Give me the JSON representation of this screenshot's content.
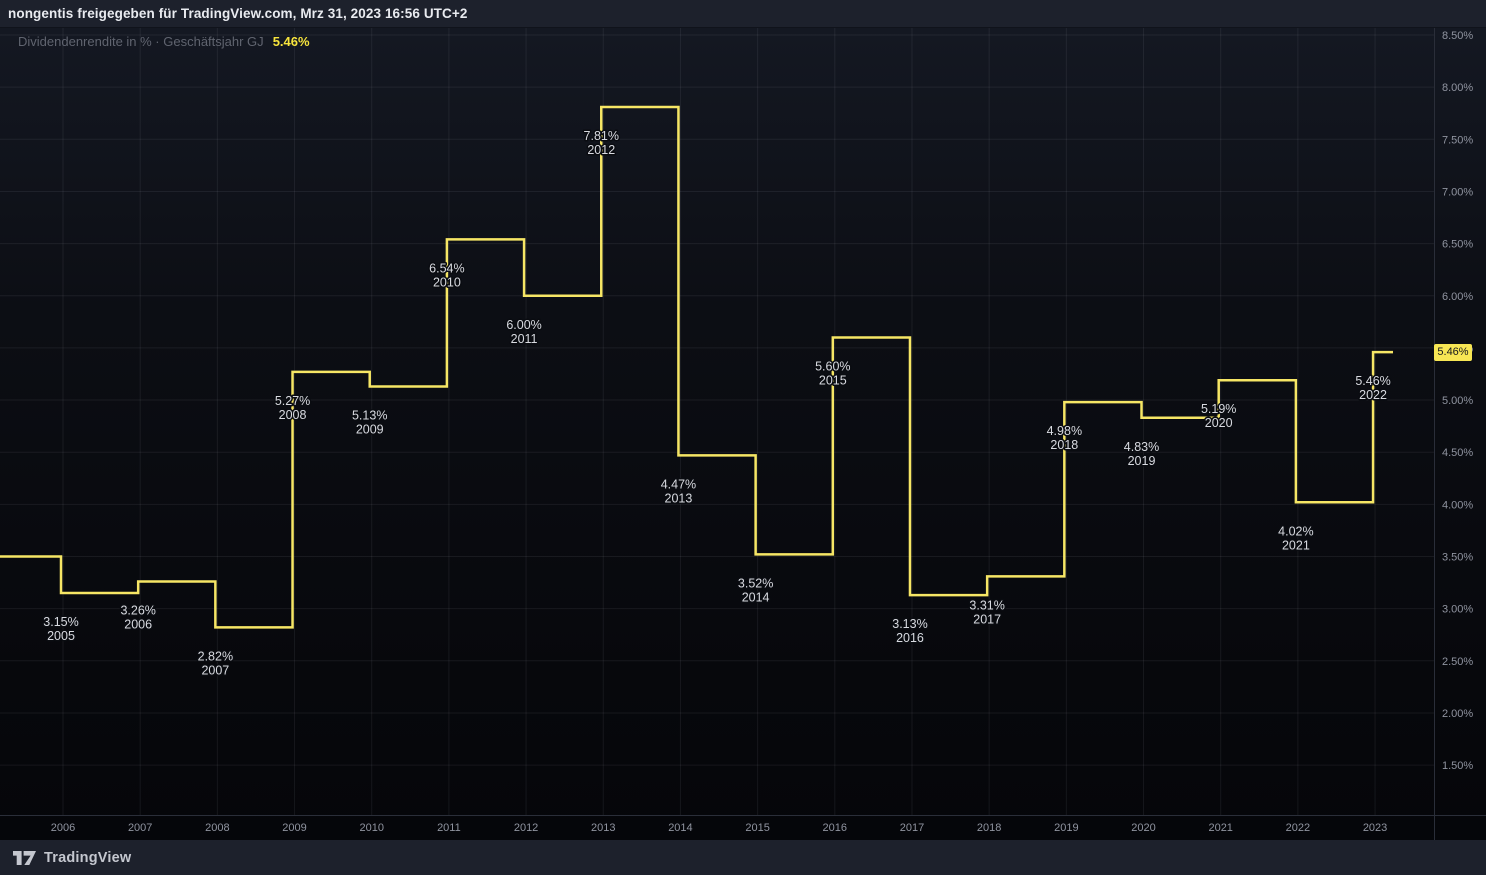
{
  "header": {
    "title": "nongentis freigegeben für TradingView.com, Mrz 31, 2023 16:56 UTC+2"
  },
  "legend": {
    "series_label": "Dividendenrendite in % · Geschäftsjahr GJ",
    "value": "5.46%"
  },
  "price_badge": {
    "value": "5.46%"
  },
  "footer": {
    "brand": "TradingView",
    "logo_icon": "tradingview-17-mark"
  },
  "colors": {
    "line": "#F6E665",
    "badge_bg": "#F7E654",
    "badge_text": "#16181D",
    "legend_value": "#F7E43C",
    "point_label": "#D8DAE0",
    "axis_text": "#9094A0",
    "grid": "rgba(240,243,250,0.07)",
    "axis_border": "#2A2E39",
    "panel_bg": "#1D212C",
    "chart_bg_top": "#141822",
    "chart_bg_bottom": "#05060A"
  },
  "chart_data": {
    "type": "line",
    "style": "step",
    "title": "Dividendenrendite in % · Geschäftsjahr GJ",
    "series": [
      {
        "name": "Dividendenrendite in %",
        "x": [
          2005,
          2006,
          2007,
          2008,
          2009,
          2010,
          2011,
          2012,
          2013,
          2014,
          2015,
          2016,
          2017,
          2018,
          2019,
          2020,
          2021,
          2022
        ],
        "values": [
          3.15,
          3.26,
          2.82,
          5.27,
          5.13,
          6.54,
          6.0,
          7.81,
          4.47,
          3.52,
          5.6,
          3.13,
          3.31,
          4.98,
          4.83,
          5.19,
          4.02,
          5.46
        ]
      }
    ],
    "leading_partial_value": 3.5,
    "current_value": 5.46,
    "point_label_format": "value_percent_over_year",
    "x_axis": {
      "ticks": [
        2006,
        2007,
        2008,
        2009,
        2010,
        2011,
        2012,
        2013,
        2014,
        2015,
        2016,
        2017,
        2018,
        2019,
        2020,
        2021,
        2022,
        2023
      ],
      "side": "bottom"
    },
    "y_axis": {
      "min": 1.5,
      "max": 8.5,
      "tick_step": 0.5,
      "format": "0.00%",
      "side": "right"
    },
    "grid": true,
    "legend_position": "top-left"
  }
}
